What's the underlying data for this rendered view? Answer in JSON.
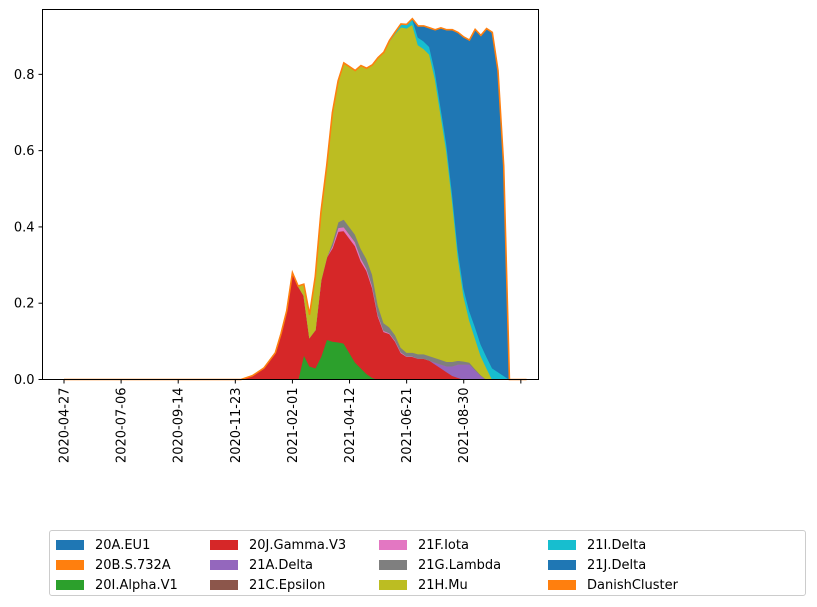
{
  "chart_data": {
    "type": "area",
    "stacked": true,
    "x_tick_labels": [
      "2020-04-27",
      "2020-07-06",
      "2020-09-14",
      "2020-11-23",
      "2021-02-01",
      "2021-04-12",
      "2021-06-21",
      "2021-08-30",
      ""
    ],
    "y_tick_labels": [
      "0.0",
      "0.2",
      "0.4",
      "0.6",
      "0.8"
    ],
    "ylim": [
      0,
      0.97
    ],
    "grid": false,
    "legend_position": "bottom",
    "legend_columns": 5,
    "x": [
      "2020-04-27",
      "2020-11-30",
      "2020-12-14",
      "2020-12-28",
      "2021-01-11",
      "2021-01-18",
      "2021-01-25",
      "2021-02-01",
      "2021-02-08",
      "2021-02-15",
      "2021-02-22",
      "2021-03-01",
      "2021-03-08",
      "2021-03-15",
      "2021-03-22",
      "2021-03-29",
      "2021-04-05",
      "2021-04-12",
      "2021-04-19",
      "2021-04-26",
      "2021-05-03",
      "2021-05-10",
      "2021-05-17",
      "2021-05-24",
      "2021-05-31",
      "2021-06-07",
      "2021-06-14",
      "2021-06-21",
      "2021-06-28",
      "2021-07-05",
      "2021-07-12",
      "2021-07-19",
      "2021-07-26",
      "2021-08-02",
      "2021-08-09",
      "2021-08-16",
      "2021-08-23",
      "2021-08-30",
      "2021-09-06",
      "2021-09-13",
      "2021-09-20",
      "2021-09-27",
      "2021-10-04",
      "2021-10-11",
      "2021-10-18",
      "2021-10-25",
      "2021-11-01",
      "2021-11-15"
    ],
    "series": [
      {
        "name": "20A.EU1",
        "color": "#1f77b4",
        "values": [
          0,
          0,
          0,
          0,
          0,
          0,
          0,
          0,
          0,
          0,
          0,
          0,
          0,
          0,
          0,
          0,
          0,
          0,
          0,
          0,
          0,
          0,
          0,
          0,
          0,
          0,
          0,
          0,
          0,
          0,
          0,
          0,
          0,
          0,
          0,
          0,
          0,
          0,
          0,
          0,
          0,
          0,
          0,
          0,
          0,
          0,
          0,
          0
        ]
      },
      {
        "name": "20B.S.732A",
        "color": "#ff7f0e",
        "values": [
          0,
          0,
          0,
          0,
          0,
          0,
          0,
          0,
          0,
          0,
          0,
          0,
          0,
          0,
          0,
          0,
          0,
          0,
          0,
          0,
          0,
          0,
          0,
          0,
          0,
          0,
          0,
          0,
          0,
          0,
          0,
          0,
          0,
          0,
          0,
          0,
          0,
          0,
          0,
          0,
          0,
          0,
          0,
          0,
          0,
          0,
          0,
          0
        ]
      },
      {
        "name": "20I.Alpha.V1",
        "color": "#2ca02c",
        "values": [
          0,
          0,
          0,
          0,
          0,
          0,
          0,
          0,
          0,
          0.065,
          0.035,
          0.03,
          0.06,
          0.105,
          0.1,
          0.098,
          0.095,
          0.07,
          0.045,
          0.03,
          0.015,
          0.005,
          0,
          0,
          0,
          0,
          0,
          0,
          0,
          0,
          0,
          0,
          0,
          0,
          0,
          0,
          0,
          0,
          0,
          0,
          0,
          0,
          0,
          0,
          0,
          0,
          0,
          0
        ]
      },
      {
        "name": "20J.Gamma.V3",
        "color": "#d62728",
        "values": [
          0,
          0,
          0.01,
          0.03,
          0.07,
          0.12,
          0.18,
          0.28,
          0.245,
          0.155,
          0.075,
          0.1,
          0.2,
          0.215,
          0.245,
          0.29,
          0.295,
          0.3,
          0.305,
          0.28,
          0.27,
          0.235,
          0.165,
          0.125,
          0.12,
          0.1,
          0.07,
          0.06,
          0.06,
          0.055,
          0.055,
          0.05,
          0.04,
          0.03,
          0.02,
          0.01,
          0.005,
          0,
          0,
          0,
          0,
          0,
          0,
          0,
          0,
          0,
          0,
          0
        ]
      },
      {
        "name": "21A.Delta",
        "color": "#9467bd",
        "values": [
          0,
          0,
          0,
          0,
          0,
          0,
          0,
          0,
          0,
          0,
          0,
          0,
          0,
          0,
          0,
          0,
          0,
          0,
          0,
          0,
          0,
          0,
          0,
          0,
          0,
          0,
          0,
          0,
          0,
          0,
          0,
          0,
          0.005,
          0.01,
          0.015,
          0.025,
          0.035,
          0.04,
          0.04,
          0.025,
          0.01,
          0,
          0,
          0,
          0,
          0,
          0,
          0
        ]
      },
      {
        "name": "21C.Epsilon",
        "color": "#8c564b",
        "values": [
          0,
          0,
          0,
          0,
          0,
          0,
          0,
          0,
          0,
          0,
          0,
          0,
          0,
          0,
          0,
          0,
          0,
          0,
          0,
          0,
          0,
          0,
          0,
          0,
          0,
          0,
          0,
          0,
          0,
          0,
          0,
          0,
          0,
          0,
          0,
          0,
          0,
          0,
          0,
          0,
          0,
          0,
          0,
          0,
          0,
          0,
          0,
          0
        ]
      },
      {
        "name": "21F.Iota",
        "color": "#e377c2",
        "values": [
          0,
          0,
          0,
          0,
          0,
          0,
          0,
          0,
          0,
          0,
          0,
          0,
          0,
          0,
          0.005,
          0.01,
          0.01,
          0.01,
          0.01,
          0.008,
          0.006,
          0.005,
          0.004,
          0.003,
          0.002,
          0.002,
          0.002,
          0.001,
          0.001,
          0,
          0,
          0,
          0,
          0,
          0,
          0,
          0,
          0,
          0,
          0,
          0,
          0,
          0,
          0,
          0,
          0,
          0,
          0
        ]
      },
      {
        "name": "21G.Lambda",
        "color": "#7f7f7f",
        "values": [
          0,
          0,
          0,
          0,
          0,
          0,
          0,
          0,
          0,
          0,
          0,
          0,
          0,
          0,
          0.01,
          0.015,
          0.02,
          0.02,
          0.02,
          0.025,
          0.025,
          0.03,
          0.025,
          0.02,
          0.015,
          0.015,
          0.012,
          0.01,
          0.01,
          0.012,
          0.012,
          0.012,
          0.012,
          0.012,
          0.012,
          0.012,
          0.01,
          0.008,
          0.005,
          0.003,
          0.002,
          0,
          0,
          0,
          0,
          0,
          0,
          0
        ]
      },
      {
        "name": "21H.Mu",
        "color": "#bcbd22",
        "values": [
          0,
          0,
          0,
          0,
          0,
          0,
          0,
          0,
          0,
          0.03,
          0.06,
          0.14,
          0.18,
          0.24,
          0.34,
          0.37,
          0.41,
          0.42,
          0.43,
          0.48,
          0.5,
          0.55,
          0.65,
          0.71,
          0.75,
          0.79,
          0.84,
          0.85,
          0.86,
          0.81,
          0.8,
          0.79,
          0.73,
          0.64,
          0.55,
          0.42,
          0.27,
          0.17,
          0.11,
          0.08,
          0.05,
          0.03,
          0,
          0,
          0,
          0,
          0,
          0
        ]
      },
      {
        "name": "21I.Delta",
        "color": "#17becf",
        "values": [
          0,
          0,
          0,
          0,
          0,
          0,
          0,
          0,
          0,
          0,
          0,
          0,
          0,
          0,
          0,
          0,
          0,
          0,
          0,
          0,
          0,
          0,
          0,
          0,
          0.002,
          0.004,
          0.008,
          0.01,
          0.015,
          0.02,
          0.02,
          0.02,
          0.02,
          0.02,
          0.02,
          0.02,
          0.02,
          0.02,
          0.025,
          0.03,
          0.03,
          0.03,
          0.03,
          0.02,
          0.01,
          0,
          0,
          0
        ]
      },
      {
        "name": "21J.Delta",
        "color": "#1f77b4",
        "values": [
          0,
          0,
          0,
          0,
          0,
          0,
          0,
          0,
          0,
          0,
          0,
          0,
          0,
          0,
          0,
          0,
          0,
          0,
          0,
          0,
          0,
          0,
          0,
          0,
          0,
          0,
          0,
          0,
          0,
          0.03,
          0.04,
          0.05,
          0.11,
          0.21,
          0.3,
          0.43,
          0.57,
          0.66,
          0.71,
          0.78,
          0.81,
          0.86,
          0.88,
          0.79,
          0.55,
          0.0,
          0,
          0
        ]
      },
      {
        "name": "DanishCluster",
        "color": "#ff7f0e",
        "values": [
          0,
          0,
          0,
          0,
          0,
          0,
          0,
          0,
          0,
          0,
          0,
          0,
          0,
          0,
          0,
          0,
          0,
          0,
          0,
          0,
          0,
          0,
          0,
          0,
          0,
          0,
          0,
          0,
          0,
          0,
          0,
          0,
          0,
          0,
          0,
          0,
          0,
          0,
          0,
          0,
          0,
          0,
          0,
          0,
          0,
          0,
          0,
          0
        ]
      }
    ]
  },
  "legend": {
    "items": [
      "20A.EU1",
      "20B.S.732A",
      "20I.Alpha.V1",
      "20J.Gamma.V3",
      "21A.Delta",
      "21C.Epsilon",
      "21F.Iota",
      "21G.Lambda",
      "21H.Mu",
      "21I.Delta",
      "21J.Delta",
      "DanishCluster"
    ]
  }
}
